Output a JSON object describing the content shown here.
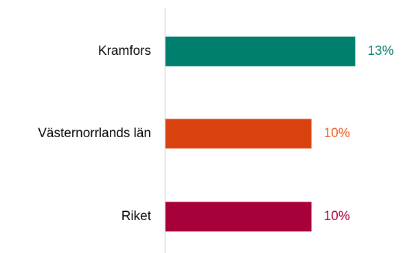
{
  "chart_data": {
    "type": "bar",
    "orientation": "horizontal",
    "categories": [
      "Kramfors",
      "Västernorrlands län",
      "Riket"
    ],
    "values": [
      13,
      10,
      10
    ],
    "value_labels": [
      "13%",
      "10%",
      "10%"
    ],
    "colors": [
      "#007f6e",
      "#d9410f",
      "#a8003a"
    ],
    "label_colors": [
      "#007f6e",
      "#f05a22",
      "#a8003a"
    ],
    "axis_color": "#d9d9d9",
    "xlim": [
      0,
      13.5
    ],
    "grid": false,
    "legend": "none",
    "title": "",
    "xlabel": "",
    "ylabel": ""
  }
}
